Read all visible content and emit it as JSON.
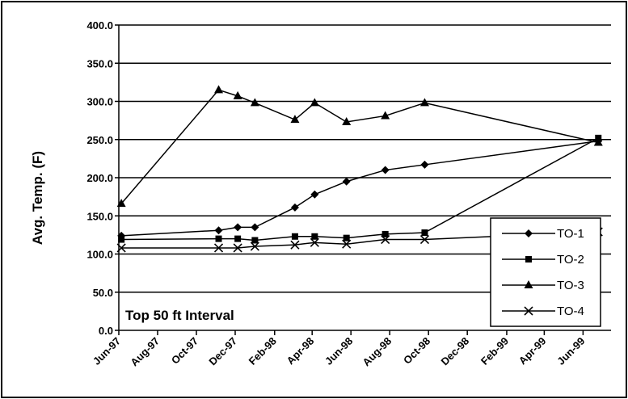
{
  "chart_data": {
    "type": "line",
    "title": "",
    "xlabel": "",
    "ylabel": "Avg. Temp. (F)",
    "annotation": "Top 50 ft Interval",
    "ylim": [
      0,
      400
    ],
    "yticks": [
      "0.0",
      "50.0",
      "100.0",
      "150.0",
      "200.0",
      "250.0",
      "300.0",
      "350.0",
      "400.0"
    ],
    "xlim": [
      "1997-06-01",
      "1999-07-15"
    ],
    "xticks": [
      {
        "date": "1997-06-01",
        "label": "Jun-97"
      },
      {
        "date": "1997-08-01",
        "label": "Aug-97"
      },
      {
        "date": "1997-10-01",
        "label": "Oct-97"
      },
      {
        "date": "1997-12-01",
        "label": "Dec-97"
      },
      {
        "date": "1998-02-01",
        "label": "Feb-98"
      },
      {
        "date": "1998-04-01",
        "label": "Apr-98"
      },
      {
        "date": "1998-06-01",
        "label": "Jun-98"
      },
      {
        "date": "1998-08-01",
        "label": "Aug-98"
      },
      {
        "date": "1998-10-01",
        "label": "Oct-98"
      },
      {
        "date": "1998-12-01",
        "label": "Dec-98"
      },
      {
        "date": "1999-02-01",
        "label": "Feb-99"
      },
      {
        "date": "1999-04-01",
        "label": "Apr-99"
      },
      {
        "date": "1999-06-01",
        "label": "Jun-99"
      }
    ],
    "grid": "horizontal",
    "legend_position": "bottom-right",
    "series": [
      {
        "name": "TO-1",
        "marker": "diamond",
        "points": [
          {
            "x": "1997-06-05",
            "y": 124
          },
          {
            "x": "1997-11-05",
            "y": 131
          },
          {
            "x": "1997-12-05",
            "y": 135
          },
          {
            "x": "1998-01-01",
            "y": 135
          },
          {
            "x": "1998-03-05",
            "y": 161
          },
          {
            "x": "1998-04-05",
            "y": 178
          },
          {
            "x": "1998-05-25",
            "y": 195
          },
          {
            "x": "1998-07-25",
            "y": 210
          },
          {
            "x": "1998-09-25",
            "y": 217
          },
          {
            "x": "1999-06-25",
            "y": 248
          }
        ]
      },
      {
        "name": "TO-2",
        "marker": "square",
        "points": [
          {
            "x": "1997-06-05",
            "y": 119
          },
          {
            "x": "1997-11-05",
            "y": 120
          },
          {
            "x": "1997-12-05",
            "y": 120
          },
          {
            "x": "1998-01-01",
            "y": 118
          },
          {
            "x": "1998-03-05",
            "y": 123
          },
          {
            "x": "1998-04-05",
            "y": 123
          },
          {
            "x": "1998-05-25",
            "y": 121
          },
          {
            "x": "1998-07-25",
            "y": 126
          },
          {
            "x": "1998-09-25",
            "y": 128
          },
          {
            "x": "1999-06-25",
            "y": 252
          }
        ]
      },
      {
        "name": "TO-3",
        "marker": "triangle",
        "points": [
          {
            "x": "1997-06-05",
            "y": 166
          },
          {
            "x": "1997-11-05",
            "y": 315
          },
          {
            "x": "1997-12-05",
            "y": 307
          },
          {
            "x": "1998-01-01",
            "y": 298
          },
          {
            "x": "1998-03-05",
            "y": 276
          },
          {
            "x": "1998-04-05",
            "y": 298
          },
          {
            "x": "1998-05-25",
            "y": 273
          },
          {
            "x": "1998-07-25",
            "y": 281
          },
          {
            "x": "1998-09-25",
            "y": 298
          },
          {
            "x": "1999-06-25",
            "y": 246
          }
        ]
      },
      {
        "name": "TO-4",
        "marker": "x",
        "points": [
          {
            "x": "1997-06-05",
            "y": 108
          },
          {
            "x": "1997-11-05",
            "y": 108
          },
          {
            "x": "1997-12-05",
            "y": 108
          },
          {
            "x": "1998-01-01",
            "y": 110
          },
          {
            "x": "1998-03-05",
            "y": 112
          },
          {
            "x": "1998-04-05",
            "y": 115
          },
          {
            "x": "1998-05-25",
            "y": 113
          },
          {
            "x": "1998-07-25",
            "y": 119
          },
          {
            "x": "1998-09-25",
            "y": 119
          },
          {
            "x": "1999-06-25",
            "y": 129
          }
        ]
      }
    ]
  }
}
